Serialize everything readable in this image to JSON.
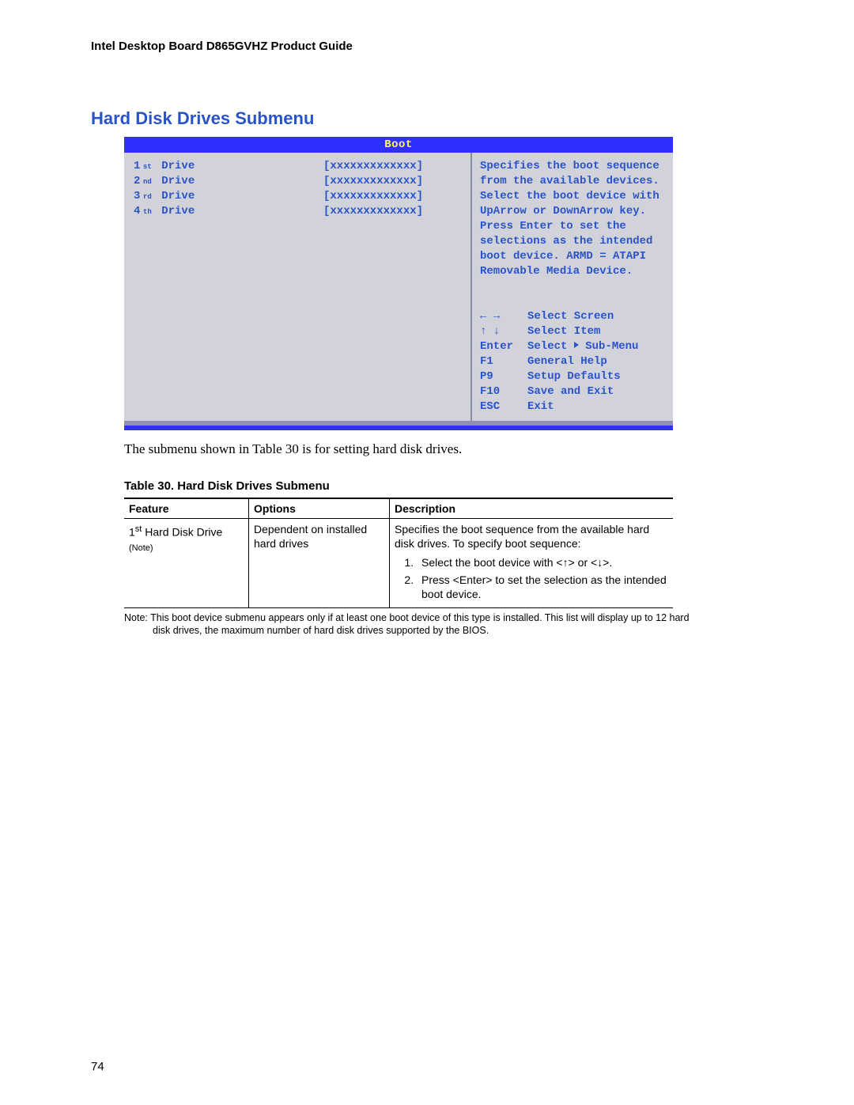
{
  "doc": {
    "running_head": "Intel Desktop Board D865GVHZ Product Guide",
    "page_number": "74"
  },
  "section": {
    "title": "Hard Disk Drives Submenu",
    "caption": "The submenu shown in Table 30 is for setting hard disk drives.",
    "table_title": "Table 30.    Hard Disk Drives Submenu",
    "table_note": "Note:  This boot device submenu appears only if at least one boot device of this type is installed.  This list will display up to 12 hard disk drives, the maximum number of hard disk drives supported by the BIOS."
  },
  "bios": {
    "tab": "Boot",
    "placeholder": "[xxxxxxxxxxxxx]",
    "drives": [
      {
        "ord": "1",
        "sup": "st",
        "label": "Drive"
      },
      {
        "ord": "2",
        "sup": "nd",
        "label": "Drive"
      },
      {
        "ord": "3",
        "sup": "rd",
        "label": "Drive"
      },
      {
        "ord": "4",
        "sup": "th",
        "label": "Drive"
      }
    ],
    "help": "Specifies the boot sequence from the available devices.  Select the boot device with UpArrow or DownArrow key. Press Enter to set the selections as the intended boot device.  ARMD = ATAPI Removable Media Device.",
    "keys": [
      {
        "k": "← →",
        "v": "Select Screen"
      },
      {
        "k": "↑ ↓",
        "v": "Select Item"
      },
      {
        "k": "Enter",
        "v": "Select ▶ Sub-Menu"
      },
      {
        "k": "F1",
        "v": "General Help"
      },
      {
        "k": "P9",
        "v": "Setup Defaults"
      },
      {
        "k": "F10",
        "v": "Save and Exit"
      },
      {
        "k": "ESC",
        "v": "Exit"
      }
    ],
    "colors": {
      "header_bg": "#2f2fff",
      "header_fg": "#ffff4d",
      "body_bg": "#d2d2da",
      "text": "#2953c8",
      "divider": "#8a8aa0"
    }
  },
  "table": {
    "headers": [
      "Feature",
      "Options",
      "Description"
    ],
    "row": {
      "feature_line1": "1",
      "feature_sup": "st",
      "feature_rest": " Hard Disk Drive",
      "feature_note": "(Note)",
      "options": "Dependent on installed hard drives",
      "desc_intro": "Specifies the boot sequence from the available hard disk drives.  To specify boot sequence:",
      "steps": [
        "Select the boot device with <↑> or <↓>.",
        "Press <Enter> to set the selection as the intended boot device."
      ]
    }
  }
}
